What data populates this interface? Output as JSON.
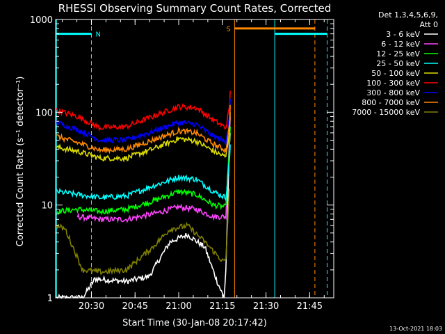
{
  "chart_data": {
    "type": "line",
    "title": "RHESSI Observing Summary Count Rates, Corrected",
    "xlabel": "Start Time (30-Jan-08 20:17:42)",
    "ylabel": "Corrected Count Rate (s⁻¹ detector⁻¹)",
    "yscale": "log",
    "xlim": [
      20.295,
      21.888
    ],
    "ylim": [
      1,
      1000
    ],
    "x_tick_labels": [
      "20:30",
      "20:45",
      "21:00",
      "21:15",
      "21:30",
      "21:45"
    ],
    "x_ticks": [
      20.5,
      20.75,
      21.0,
      21.25,
      21.5,
      21.75
    ],
    "y_tick_labels": [
      "1",
      "10",
      "100",
      "1000"
    ],
    "y_ticks": [
      1,
      10,
      100,
      1000
    ],
    "grid": false,
    "legend_position": "right",
    "legend_header": [
      "Det 1,3,4,5,6,9,",
      "Att 0"
    ],
    "series": [
      {
        "name": "3 - 6 keV",
        "color": "#ffffff",
        "values": [
          [
            20.3,
            1
          ],
          [
            20.45,
            1
          ],
          [
            20.52,
            1.6
          ],
          [
            20.7,
            1.5
          ],
          [
            20.83,
            1.7
          ],
          [
            20.95,
            4
          ],
          [
            21.05,
            4.8
          ],
          [
            21.15,
            3.5
          ],
          [
            21.22,
            1.5
          ],
          [
            21.26,
            1
          ],
          [
            21.27,
            2
          ],
          [
            21.29,
            40
          ],
          [
            21.295,
            60
          ]
        ]
      },
      {
        "name": "6 - 12 keV",
        "color": "#ff44ff",
        "values": [
          [
            20.42,
            7.5
          ],
          [
            20.55,
            7
          ],
          [
            20.7,
            7
          ],
          [
            20.85,
            8
          ],
          [
            21.0,
            9.5
          ],
          [
            21.1,
            9
          ],
          [
            21.2,
            7.5
          ],
          [
            21.27,
            7.5
          ],
          [
            21.29,
            50
          ],
          [
            21.295,
            90
          ]
        ]
      },
      {
        "name": "12 - 25 keV",
        "color": "#00ff00",
        "values": [
          [
            20.3,
            8.5
          ],
          [
            20.42,
            9
          ],
          [
            20.55,
            8.5
          ],
          [
            20.7,
            9
          ],
          [
            20.85,
            11
          ],
          [
            21.0,
            14
          ],
          [
            21.1,
            13
          ],
          [
            21.2,
            10
          ],
          [
            21.27,
            9.5
          ],
          [
            21.29,
            40
          ],
          [
            21.295,
            70
          ]
        ]
      },
      {
        "name": "25 - 50 keV",
        "color": "#00ffff",
        "values": [
          [
            20.3,
            14
          ],
          [
            20.42,
            13
          ],
          [
            20.55,
            12
          ],
          [
            20.7,
            12.5
          ],
          [
            20.85,
            16
          ],
          [
            21.0,
            20
          ],
          [
            21.1,
            19
          ],
          [
            21.2,
            14
          ],
          [
            21.27,
            12
          ],
          [
            21.29,
            30
          ],
          [
            21.295,
            45
          ]
        ]
      },
      {
        "name": "50 - 100 keV",
        "color": "#dddd00",
        "values": [
          [
            20.3,
            42
          ],
          [
            20.42,
            38
          ],
          [
            20.55,
            32
          ],
          [
            20.7,
            32
          ],
          [
            20.85,
            40
          ],
          [
            21.0,
            52
          ],
          [
            21.1,
            49
          ],
          [
            21.2,
            38
          ],
          [
            21.27,
            33
          ],
          [
            21.29,
            60
          ],
          [
            21.295,
            100
          ]
        ]
      },
      {
        "name": "100 - 300 keV",
        "color": "#ff0000",
        "values": [
          [
            20.3,
            105
          ],
          [
            20.42,
            90
          ],
          [
            20.55,
            68
          ],
          [
            20.7,
            70
          ],
          [
            20.85,
            90
          ],
          [
            21.0,
            115
          ],
          [
            21.1,
            112
          ],
          [
            21.2,
            82
          ],
          [
            21.27,
            68
          ],
          [
            21.29,
            110
          ],
          [
            21.295,
            170
          ]
        ]
      },
      {
        "name": "300 - 800 keV",
        "color": "#0000ff",
        "values": [
          [
            20.3,
            78
          ],
          [
            20.42,
            65
          ],
          [
            20.55,
            50
          ],
          [
            20.7,
            50
          ],
          [
            20.85,
            62
          ],
          [
            21.0,
            78
          ],
          [
            21.1,
            74
          ],
          [
            21.2,
            55
          ],
          [
            21.27,
            48
          ],
          [
            21.29,
            90
          ],
          [
            21.295,
            140
          ]
        ]
      },
      {
        "name": "800 - 7000 keV",
        "color": "#ff8800",
        "values": [
          [
            20.3,
            55
          ],
          [
            20.42,
            47
          ],
          [
            20.55,
            39
          ],
          [
            20.7,
            40
          ],
          [
            20.85,
            50
          ],
          [
            21.0,
            63
          ],
          [
            21.1,
            60
          ],
          [
            21.2,
            45
          ],
          [
            21.27,
            39
          ],
          [
            21.29,
            70
          ],
          [
            21.295,
            120
          ]
        ]
      },
      {
        "name": "7000 - 15000 keV",
        "color": "#808000",
        "values": [
          [
            20.3,
            6
          ],
          [
            20.35,
            5.5
          ],
          [
            20.45,
            2
          ],
          [
            20.55,
            1.9
          ],
          [
            20.7,
            2
          ],
          [
            20.85,
            3.5
          ],
          [
            20.95,
            5.5
          ],
          [
            21.05,
            6
          ],
          [
            21.15,
            4
          ],
          [
            21.25,
            2.5
          ],
          [
            21.27,
            2.5
          ],
          [
            21.29,
            15
          ]
        ]
      }
    ],
    "annotations": [
      {
        "label": "N",
        "color": "#00ffff"
      },
      {
        "label": "S",
        "color": "#ff8800"
      }
    ],
    "flag_bars": [
      {
        "color": "#00ffff",
        "x": [
          20.3,
          20.5
        ],
        "level": 700
      },
      {
        "color": "#ff8800",
        "x": [
          21.32,
          21.78
        ],
        "level": 800
      },
      {
        "color": "#00ffff",
        "x": [
          21.55,
          21.85
        ],
        "level": 700
      }
    ],
    "solid_vlines": [
      {
        "color": "#00ffff",
        "x": 20.3
      },
      {
        "color": "#ff8800",
        "x": 21.32
      },
      {
        "color": "#00ffff",
        "x": 21.55
      }
    ],
    "dashed_vlines": [
      {
        "color": "#00ffff",
        "x": 20.5
      },
      {
        "color": "#ff8800",
        "x": 21.78
      },
      {
        "color": "#00ffff",
        "x": 21.85
      }
    ]
  },
  "footer": {
    "date": "13-Oct-2021 18:03"
  }
}
